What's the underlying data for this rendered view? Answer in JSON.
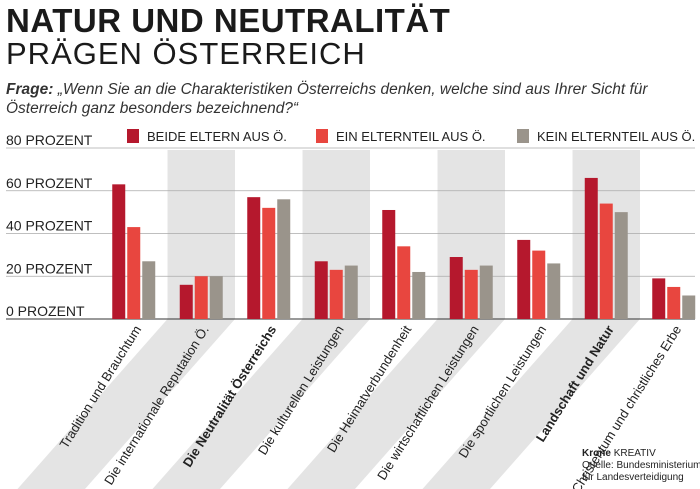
{
  "header": {
    "title_line1": "NATUR UND NEUTRALITÄT",
    "title_line2": "PRÄGEN ÖSTERREICH",
    "question_label": "Frage:",
    "question_text": "„Wenn Sie an die Charakteristiken Österreichs denken, welche sind aus Ihrer Sicht für Österreich ganz besonders bezeichnend?“"
  },
  "credit": {
    "brand": "Krone",
    "brand_suffix": "KREATIV",
    "source_line1": "Quelle: Bundesministerium",
    "source_line2": "für Landesverteidigung"
  },
  "colors": {
    "series": [
      "#b5182d",
      "#e8463f",
      "#9a948b"
    ],
    "shade": "#e4e4e4",
    "grid": "#aaaaaa"
  },
  "chart_data": {
    "type": "bar",
    "ylim": [
      0,
      80
    ],
    "y_ticks": [
      0,
      20,
      40,
      60,
      80
    ],
    "y_tick_labels": [
      "0 PROZENT",
      "20 PROZENT",
      "40 PROZENT",
      "60 PROZENT",
      "80 PROZENT"
    ],
    "legend_position": "top",
    "categories": [
      "Tradition und Brauchtum",
      "Die internationale Reputation Ö.",
      "Die Neutralität Österreichs",
      "Die kulturellen Leistungen",
      "Die Heimatverbundenheit",
      "Die wirtschaftlichen Leistungen",
      "Die sportlichen Leistungen",
      "Landschaft und Natur",
      "Christentum und christliches Erbe"
    ],
    "bold_categories": [
      2,
      7
    ],
    "series": [
      {
        "name": "BEIDE ELTERN AUS Ö.",
        "values": [
          63,
          16,
          57,
          27,
          51,
          29,
          37,
          66,
          19
        ]
      },
      {
        "name": "EIN ELTERNTEIL AUS Ö.",
        "values": [
          43,
          20,
          52,
          23,
          34,
          23,
          32,
          54,
          15
        ]
      },
      {
        "name": "KEIN ELTERNTEIL AUS Ö.",
        "values": [
          27,
          20,
          56,
          25,
          22,
          25,
          26,
          50,
          11
        ]
      }
    ]
  }
}
